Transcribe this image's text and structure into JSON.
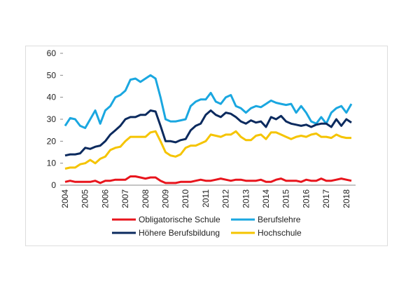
{
  "chart_data": {
    "type": "line",
    "categories": [
      "2004",
      null,
      null,
      null,
      "2005",
      null,
      null,
      null,
      "2006",
      null,
      null,
      null,
      "2007",
      null,
      null,
      null,
      "2008",
      null,
      null,
      null,
      "2009",
      null,
      null,
      null,
      "2010",
      null,
      null,
      null,
      "2011",
      null,
      null,
      null,
      "2012",
      null,
      null,
      null,
      "2013",
      null,
      null,
      null,
      "2014",
      null,
      null,
      null,
      "2015",
      null,
      null,
      null,
      "2016",
      null,
      null,
      null,
      "2017",
      null,
      null,
      null,
      "2018",
      null
    ],
    "series": [
      {
        "name": "Obligatorische Schule",
        "color": "#e8141c",
        "values": [
          1.5,
          2,
          1.5,
          1.5,
          1.5,
          1.5,
          2,
          1,
          2,
          2,
          2.5,
          2.5,
          2.5,
          4,
          4,
          3.5,
          3,
          3.5,
          3.5,
          2,
          1,
          1,
          1,
          1.5,
          1.5,
          1.5,
          2,
          2.5,
          2,
          2,
          2.5,
          3,
          2.5,
          2,
          2.5,
          2.5,
          2,
          2,
          2,
          2.5,
          1.5,
          1.5,
          2.5,
          3,
          2,
          2,
          2,
          1.5,
          2.5,
          2,
          2,
          3,
          2,
          2,
          2.5,
          3,
          2.5,
          2
        ]
      },
      {
        "name": "Berufslehre",
        "color": "#1aa7e0",
        "values": [
          27,
          30.5,
          30,
          27,
          26,
          30,
          34,
          28,
          34,
          36,
          40,
          41,
          43,
          48,
          48.5,
          47,
          48.5,
          50,
          48.5,
          40,
          30,
          29,
          29,
          29.5,
          30,
          36,
          38,
          39,
          39,
          42,
          38,
          37,
          40,
          41,
          36,
          35,
          33,
          35,
          36,
          35.5,
          37,
          38.5,
          37.5,
          37,
          36.5,
          37,
          33,
          36,
          33,
          29,
          28,
          31,
          28,
          33,
          35,
          36,
          33,
          37
        ]
      },
      {
        "name": "Höhere Berufsbildung",
        "color": "#0b2a5e",
        "values": [
          13.5,
          14,
          14,
          14.5,
          17,
          16.5,
          17.5,
          18,
          20,
          23,
          25,
          27,
          30,
          31,
          31,
          32,
          32,
          34,
          33.5,
          27,
          20,
          20,
          19.5,
          20.5,
          21,
          25,
          27,
          28,
          32,
          34,
          32,
          31,
          33,
          32.5,
          31,
          29,
          28,
          29.5,
          28.5,
          29,
          26.5,
          31,
          30,
          31.5,
          29,
          28,
          27.5,
          27,
          27.5,
          26.5,
          27.5,
          28,
          28,
          26.5,
          30,
          27,
          30,
          28.5
        ]
      },
      {
        "name": "Hochschule",
        "color": "#f5c400",
        "values": [
          7.5,
          8,
          8,
          9.5,
          10,
          11.5,
          10,
          12,
          13,
          16,
          17,
          17.5,
          20,
          22,
          22,
          22,
          22,
          24,
          24.5,
          20,
          15,
          13.5,
          13,
          14,
          17,
          18,
          18,
          19,
          20,
          23,
          22.5,
          22,
          23,
          23,
          24.5,
          22,
          20.5,
          20.5,
          22.5,
          23,
          21,
          24,
          24,
          23,
          22,
          21,
          22,
          22.5,
          22,
          23,
          23.5,
          22,
          22,
          21.5,
          23,
          22,
          21.5,
          21.5
        ]
      }
    ],
    "ylim": [
      0,
      60
    ],
    "yticks": [
      0,
      10,
      20,
      30,
      40,
      50,
      60
    ]
  }
}
